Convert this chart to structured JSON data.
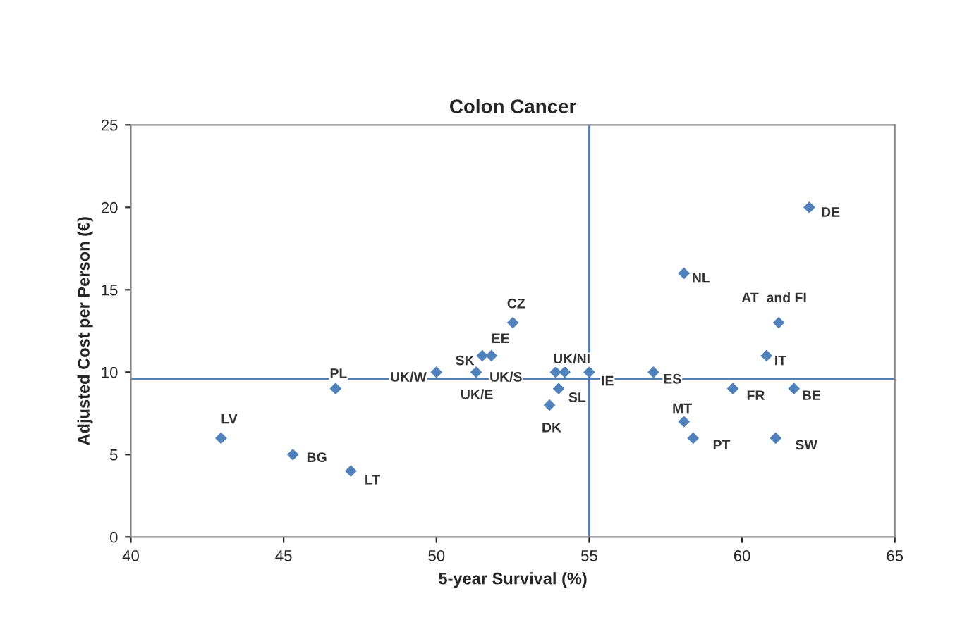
{
  "chart_data": {
    "type": "scatter",
    "title": "Colon Cancer",
    "xlabel": "5-year Survival (%)",
    "ylabel": "Adjusted Cost per Person (€)",
    "series": [
      {
        "color": "#4f81bd",
        "x": [
          42.95,
          45.3,
          47.2,
          46.7,
          50.0,
          51.5,
          51.8,
          51.3,
          52.5,
          53.9,
          54.2,
          55.0,
          54.0,
          53.7,
          57.1,
          58.1,
          58.4,
          58.1,
          62.2,
          61.2,
          60.8,
          59.7,
          61.7,
          61.1
        ],
        "values": [
          6,
          5,
          4,
          9,
          10,
          11,
          11,
          10,
          13,
          10,
          10,
          10,
          9,
          8,
          10,
          7,
          6,
          16,
          20,
          13,
          11,
          9,
          9,
          6
        ]
      }
    ],
    "annotations": [
      {
        "text": "LV",
        "x": 42.95,
        "y": 6
      },
      {
        "text": "BG",
        "x": 45.3,
        "y": 5
      },
      {
        "text": "LT",
        "x": 47.2,
        "y": 4
      },
      {
        "text": "PL",
        "x": 46.7,
        "y": 9
      },
      {
        "text": "UK/W",
        "x": 50.0,
        "y": 10
      },
      {
        "text": "SK",
        "x": 51.5,
        "y": 11
      },
      {
        "text": "EE",
        "x": 51.8,
        "y": 11
      },
      {
        "text": "UK/E",
        "x": 51.3,
        "y": 10
      },
      {
        "text": "CZ",
        "x": 52.5,
        "y": 13
      },
      {
        "text": "UK/S",
        "x": 53.9,
        "y": 10
      },
      {
        "text": "UK/NI",
        "x": 54.2,
        "y": 10
      },
      {
        "text": "IE",
        "x": 55.0,
        "y": 10
      },
      {
        "text": "SL",
        "x": 54.0,
        "y": 9
      },
      {
        "text": "DK",
        "x": 53.7,
        "y": 8
      },
      {
        "text": "ES",
        "x": 57.1,
        "y": 10
      },
      {
        "text": "MT",
        "x": 58.1,
        "y": 7
      },
      {
        "text": "PT",
        "x": 58.4,
        "y": 6
      },
      {
        "text": "NL",
        "x": 58.1,
        "y": 16
      },
      {
        "text": "DE",
        "x": 62.2,
        "y": 20
      },
      {
        "text": "AT  and FI",
        "x": 61.2,
        "y": 13
      },
      {
        "text": "IT",
        "x": 60.8,
        "y": 11
      },
      {
        "text": "FR",
        "x": 59.7,
        "y": 9
      },
      {
        "text": "BE",
        "x": 61.7,
        "y": 9
      },
      {
        "text": "SW",
        "x": 61.1,
        "y": 6
      }
    ],
    "ref_lines": [
      {
        "axis": "y",
        "value": 9.6,
        "color": "#4f81bd"
      },
      {
        "axis": "x",
        "value": 55,
        "color": "#4f81bd"
      }
    ],
    "xlim": [
      40,
      65
    ],
    "xticks": [
      40,
      45,
      50,
      55,
      60,
      65
    ],
    "ylim": [
      0,
      25
    ],
    "yticks": [
      0,
      5,
      10,
      15,
      20,
      25
    ],
    "marker": "diamond",
    "grid": false,
    "legend": false
  }
}
